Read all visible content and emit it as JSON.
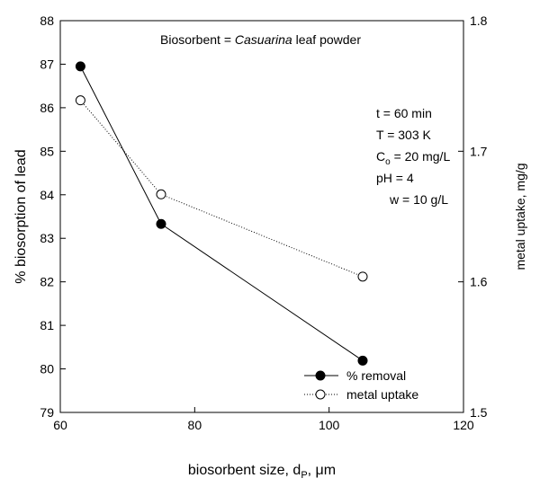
{
  "chart_data": {
    "type": "line",
    "annotation": {
      "prefix": "Biosorbent = ",
      "italic": "Casuarina",
      "suffix": " leaf powder"
    },
    "conditions": [
      {
        "main": "t = 60 min"
      },
      {
        "main": "T = 303 K"
      },
      {
        "main": "C",
        "sub": "o",
        "rest": " = 20 mg/L"
      },
      {
        "main": "pH = 4"
      },
      {
        "main": "w = 10 g/L"
      }
    ],
    "xaxis": {
      "label_main": "biosorbent size, d",
      "label_sub": "P",
      "label_rest": ", μm",
      "range": [
        60,
        120
      ],
      "ticks": [
        "60",
        "80",
        "100",
        "120"
      ]
    },
    "yaxis_left": {
      "label": "% biosorption of lead",
      "range": [
        79,
        88
      ],
      "ticks": [
        "79",
        "80",
        "81",
        "82",
        "83",
        "84",
        "85",
        "86",
        "87",
        "88"
      ]
    },
    "yaxis_right": {
      "label": "metal uptake, mg/g",
      "range": [
        1.5,
        1.8
      ],
      "ticks": [
        "1.5",
        "1.6",
        "1.7",
        "1.8"
      ]
    },
    "series": [
      {
        "name": "% removal",
        "axis": "left",
        "marker": "filled-circle",
        "line": "solid",
        "x": [
          63,
          75,
          105
        ],
        "y": [
          86.95,
          83.33,
          80.19
        ]
      },
      {
        "name": "metal uptake",
        "axis": "right",
        "marker": "open-circle",
        "line": "dotted",
        "x": [
          63,
          75,
          105
        ],
        "y": [
          1.739,
          1.667,
          1.604
        ]
      }
    ],
    "legend_position": "bottom-right"
  }
}
